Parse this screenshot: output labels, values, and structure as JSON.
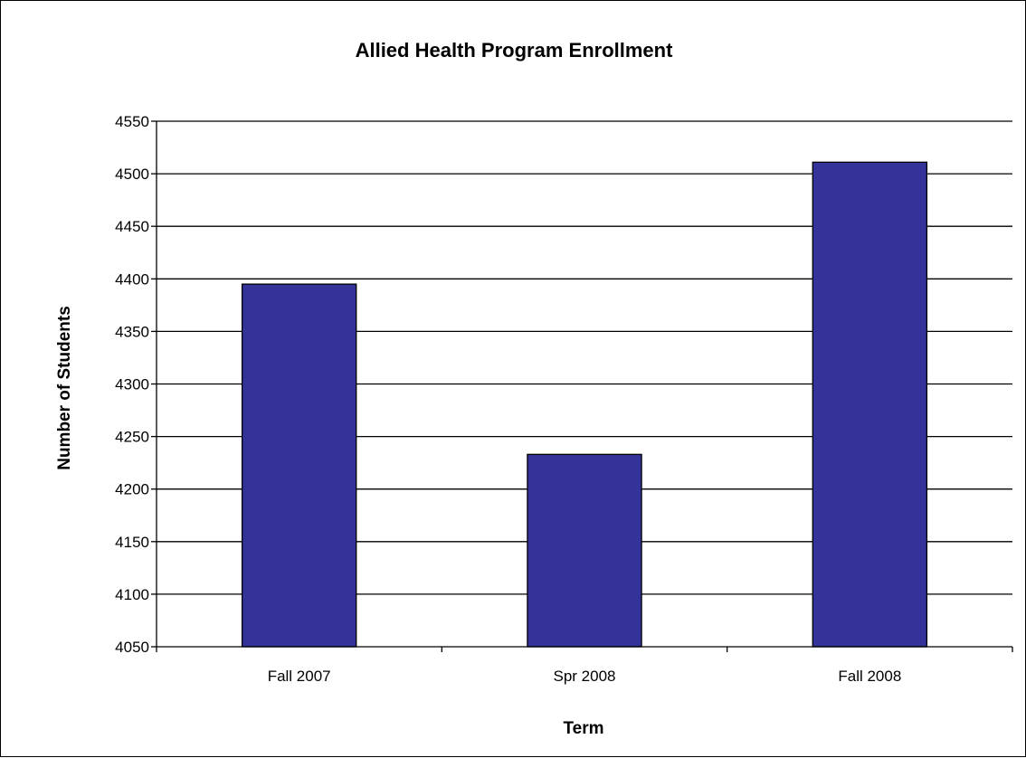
{
  "chart_data": {
    "type": "bar",
    "title": "Allied Health Program Enrollment",
    "xlabel": "Term",
    "ylabel": "Number of Students",
    "categories": [
      "Fall 2007",
      "Spr 2008",
      "Fall 2008"
    ],
    "values": [
      4395,
      4233,
      4511
    ],
    "ylim": [
      4050,
      4550
    ],
    "ytick_step": 50,
    "grid": true,
    "legend": "none",
    "bar_color": "#333399",
    "bar_edge_color": "#000000"
  }
}
